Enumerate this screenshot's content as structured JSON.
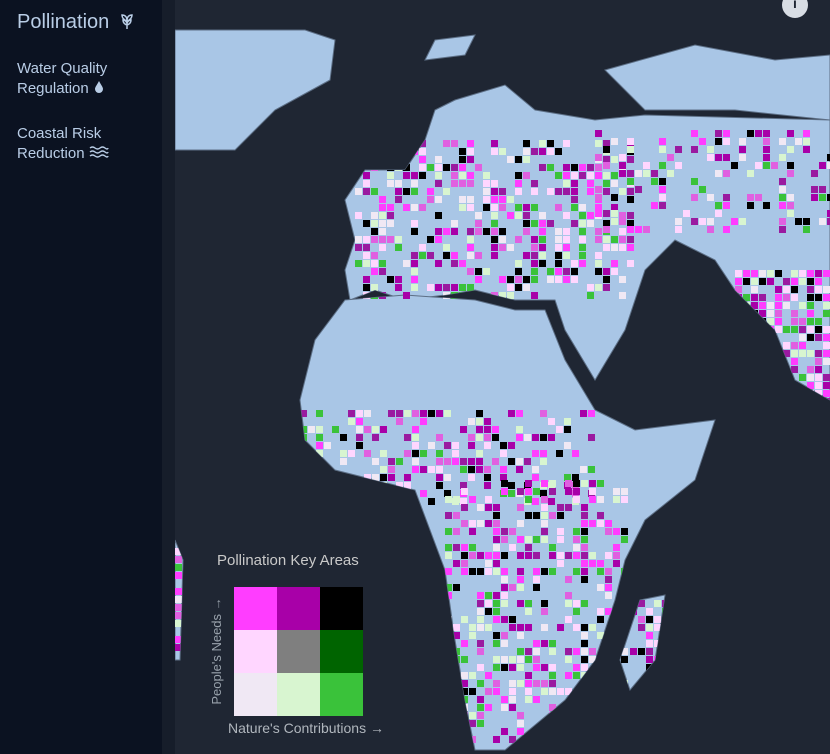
{
  "sidebar": {
    "items": [
      "Pollination",
      "Water Quality Regulation",
      "Coastal Risk Reduction"
    ]
  },
  "info_button": "i",
  "legend": {
    "title": "Pollination Key Areas",
    "y_label": "People's Needs →",
    "x_label": "Nature's Contributions →"
  }
}
